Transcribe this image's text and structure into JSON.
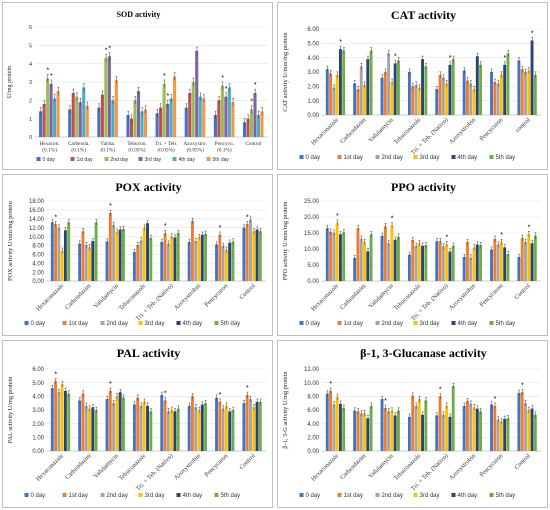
{
  "legend_colors": [
    "#4472c4",
    "#ed7d31",
    "#a5a5a5",
    "#ffc000",
    "#264478",
    "#70ad47"
  ],
  "sod_colors": [
    "#4472c4",
    "#c0504d",
    "#9bbb59",
    "#8064a2",
    "#4bacc6",
    "#f79646"
  ],
  "chart_data": [
    {
      "type": "bar",
      "title": "SOD activity",
      "ylabel": "U/mg protein",
      "ylim": [
        0,
        6
      ],
      "yticks": [
        0,
        1,
        2,
        3,
        4,
        5,
        6
      ],
      "categories": [
        "Hexacon. (0.1%)",
        "Carbenda. (0.1%)",
        "Valida. (0.1%)",
        "Tebucon. (0.05%)",
        "Tri. + Teb. (0.05%)",
        "Azoxystro. (0.05%)",
        "Pencycu. (0.1%)",
        "Control"
      ],
      "series": [
        {
          "name": "0 day",
          "values": [
            1.4,
            1.5,
            1.6,
            1.2,
            1.3,
            1.6,
            1.2,
            0.8
          ]
        },
        {
          "name": "1st day",
          "values": [
            1.8,
            2.4,
            2.3,
            1.0,
            1.6,
            2.4,
            2.0,
            1.0
          ]
        },
        {
          "name": "2nd day",
          "values": [
            3.2,
            2.2,
            4.3,
            2.0,
            2.9,
            3.0,
            2.8,
            1.5
          ]
        },
        {
          "name": "3rd day",
          "values": [
            2.9,
            1.9,
            4.4,
            2.5,
            1.8,
            4.7,
            2.2,
            2.4
          ]
        },
        {
          "name": "4th day",
          "values": [
            2.1,
            2.7,
            2.0,
            1.4,
            2.1,
            2.2,
            2.7,
            1.2
          ]
        },
        {
          "name": "5th day",
          "values": [
            2.5,
            1.7,
            3.1,
            1.5,
            3.3,
            2.1,
            1.9,
            1.4
          ]
        }
      ],
      "star_series": [
        2,
        3
      ]
    },
    {
      "type": "bar",
      "title": "CAT activity",
      "ylabel": "CAT activity U/min/mg protein",
      "ylim": [
        0,
        6
      ],
      "yticks": [
        "0.00",
        "1.00",
        "2.00",
        "3.00",
        "4.00",
        "5.00",
        "6.00"
      ],
      "categories": [
        "Hexaconazole",
        "Carbendazim",
        "Validamycin",
        "Tebuconazole",
        "Tri. + Teb. (Nativo)",
        "Azoxystrobin",
        "Pencycuron",
        "control"
      ],
      "series": [
        {
          "name": "0 day",
          "values": [
            3.2,
            2.2,
            2.6,
            3.0,
            1.8,
            3.1,
            3.0,
            3.8
          ]
        },
        {
          "name": "1st day",
          "values": [
            2.9,
            1.8,
            3.0,
            2.0,
            2.8,
            2.4,
            2.3,
            3.2
          ]
        },
        {
          "name": "2nd day",
          "values": [
            1.9,
            3.4,
            4.3,
            2.1,
            2.6,
            2.2,
            2.2,
            3.0
          ]
        },
        {
          "name": "3rd day",
          "values": [
            2.8,
            2.1,
            2.3,
            1.9,
            2.2,
            1.8,
            2.8,
            3.1
          ]
        },
        {
          "name": "4th day",
          "values": [
            4.6,
            3.9,
            3.6,
            3.9,
            3.5,
            4.1,
            3.5,
            5.2
          ]
        },
        {
          "name": "5th day",
          "values": [
            4.5,
            4.5,
            3.8,
            3.4,
            3.9,
            3.5,
            4.3,
            2.8
          ]
        }
      ],
      "star_series": [
        4
      ]
    },
    {
      "type": "bar",
      "title": "POX activity",
      "ylabel": "POX activity U/min/mg protein",
      "ylim": [
        0,
        18
      ],
      "yticks": [
        "0.00",
        "2.00",
        "4.00",
        "6.00",
        "8.00",
        "10.00",
        "12.00",
        "14.00",
        "16.00",
        "18.00"
      ],
      "categories": [
        "Hexaconazole",
        "Carbendazim",
        "Validamycin",
        "Tebuconazole",
        "Tri. + Teb. (Nativo)",
        "Azoxystrobin",
        "Pencycuron",
        "Control"
      ],
      "series": [
        {
          "name": "0 day",
          "values": [
            13.2,
            8.4,
            8.9,
            6.5,
            8.8,
            8.8,
            8.2,
            12.0
          ]
        },
        {
          "name": "1st day",
          "values": [
            12.8,
            11.2,
            15.3,
            8.1,
            10.8,
            13.5,
            10.4,
            12.8
          ]
        },
        {
          "name": "2nd day",
          "values": [
            12.0,
            8.1,
            12.6,
            9.1,
            8.4,
            9.0,
            7.9,
            13.8
          ]
        },
        {
          "name": "3rd day",
          "values": [
            6.8,
            7.6,
            11.1,
            12.0,
            10.0,
            9.9,
            7.0,
            11.2
          ]
        },
        {
          "name": "4th day",
          "values": [
            11.4,
            9.0,
            11.6,
            13.0,
            9.8,
            10.4,
            8.6,
            11.6
          ]
        },
        {
          "name": "5th day",
          "values": [
            13.2,
            13.2,
            11.7,
            9.7,
            10.8,
            10.6,
            8.9,
            11.2
          ]
        }
      ],
      "star_series": [
        1
      ]
    },
    {
      "type": "bar",
      "title": "PPO activity",
      "ylabel": "PPO activity U/min/mg protein",
      "ylim": [
        0,
        25
      ],
      "yticks": [
        "0.00",
        "5.00",
        "10.00",
        "15.00",
        "20.00",
        "25.00"
      ],
      "categories": [
        "Hexaconazole",
        "Carbendazim",
        "Validamycin",
        "Tebuconazole",
        "Tri. + Teb. (Nativo)",
        "Azoxystrobin",
        "Pencycuron",
        "Control"
      ],
      "series": [
        {
          "name": "0 day",
          "values": [
            16.5,
            7.2,
            14.1,
            8.2,
            12.4,
            7.5,
            9.8,
            7.5
          ]
        },
        {
          "name": "1st day",
          "values": [
            15.4,
            16.5,
            17.1,
            12.8,
            12.5,
            12.2,
            13.2,
            13.4
          ]
        },
        {
          "name": "2nd day",
          "values": [
            15.1,
            13.2,
            11.8,
            11.0,
            10.8,
            7.3,
            11.4,
            12.2
          ]
        },
        {
          "name": "3rd day",
          "values": [
            18.2,
            12.2,
            17.4,
            11.8,
            11.5,
            10.5,
            12.2,
            14.6
          ]
        },
        {
          "name": "4th day",
          "values": [
            14.6,
            9.3,
            12.9,
            11.0,
            9.2,
            11.4,
            10.5,
            11.8
          ]
        },
        {
          "name": "5th day",
          "values": [
            15.2,
            14.6,
            13.8,
            11.2,
            11.0,
            11.2,
            8.4,
            14.2
          ]
        }
      ],
      "star_series": [
        3
      ]
    },
    {
      "type": "bar",
      "title": "PAL activity",
      "ylabel": "PAL activity U/mg protein",
      "ylim": [
        0,
        6
      ],
      "yticks": [
        "0.00",
        "1.00",
        "2.00",
        "3.00",
        "4.00",
        "5.00",
        "6.00"
      ],
      "categories": [
        "Hexaconazole",
        "Carbendazim",
        "Validamycin",
        "Tebuconazole",
        "Tri. + Teb. (Nativo)",
        "Azoxystrobin",
        "Pencycuron",
        "Control"
      ],
      "series": [
        {
          "name": "0 day",
          "values": [
            4.6,
            3.7,
            3.8,
            3.4,
            4.1,
            3.3,
            3.9,
            3.5
          ]
        },
        {
          "name": "1st day",
          "values": [
            5.1,
            4.2,
            4.4,
            3.9,
            3.7,
            4.0,
            3.6,
            4.1
          ]
        },
        {
          "name": "2nd day",
          "values": [
            4.3,
            3.3,
            3.5,
            3.3,
            2.9,
            3.2,
            3.1,
            3.8
          ]
        },
        {
          "name": "3rd day",
          "values": [
            4.9,
            3.1,
            4.0,
            3.6,
            3.0,
            3.0,
            3.3,
            3.2
          ]
        },
        {
          "name": "4th day",
          "values": [
            4.4,
            3.2,
            4.3,
            3.3,
            2.9,
            3.4,
            2.9,
            3.6
          ]
        },
        {
          "name": "5th day",
          "values": [
            4.2,
            3.0,
            3.9,
            2.9,
            3.1,
            3.5,
            3.0,
            3.6
          ]
        }
      ],
      "star_series": [
        1
      ]
    },
    {
      "type": "bar",
      "title": "β-1, 3-Glucanase activity",
      "ylabel": "β-1, 3-G activity U/mg protein",
      "ylim": [
        0,
        12
      ],
      "yticks": [
        "0.00",
        "2.00",
        "4.00",
        "6.00",
        "8.00",
        "10.00",
        "12.00"
      ],
      "categories": [
        "Hexaconazole",
        "Carbendazim",
        "Validamycin",
        "Tebuconazole",
        "Tri. + Teb. (Nativo)",
        "Azoxystrobin",
        "Pencycuron",
        "Control"
      ],
      "series": [
        {
          "name": "0 day",
          "values": [
            8.4,
            5.9,
            7.6,
            5.0,
            5.2,
            6.6,
            6.8,
            8.5
          ]
        },
        {
          "name": "1st day",
          "values": [
            8.8,
            5.8,
            6.3,
            8.1,
            8.0,
            7.3,
            6.6,
            8.6
          ]
        },
        {
          "name": "2nd day",
          "values": [
            6.8,
            5.5,
            5.8,
            6.6,
            5.3,
            6.9,
            4.6,
            7.0
          ]
        },
        {
          "name": "3rd day",
          "values": [
            7.9,
            5.5,
            5.9,
            7.6,
            6.6,
            6.4,
            4.3,
            6.0
          ]
        },
        {
          "name": "4th day",
          "values": [
            6.9,
            4.8,
            5.2,
            5.3,
            5.0,
            6.2,
            4.7,
            6.2
          ]
        },
        {
          "name": "5th day",
          "values": [
            6.3,
            6.6,
            5.9,
            7.4,
            9.5,
            5.8,
            4.8,
            5.3
          ]
        }
      ],
      "star_series": [
        1
      ]
    }
  ]
}
